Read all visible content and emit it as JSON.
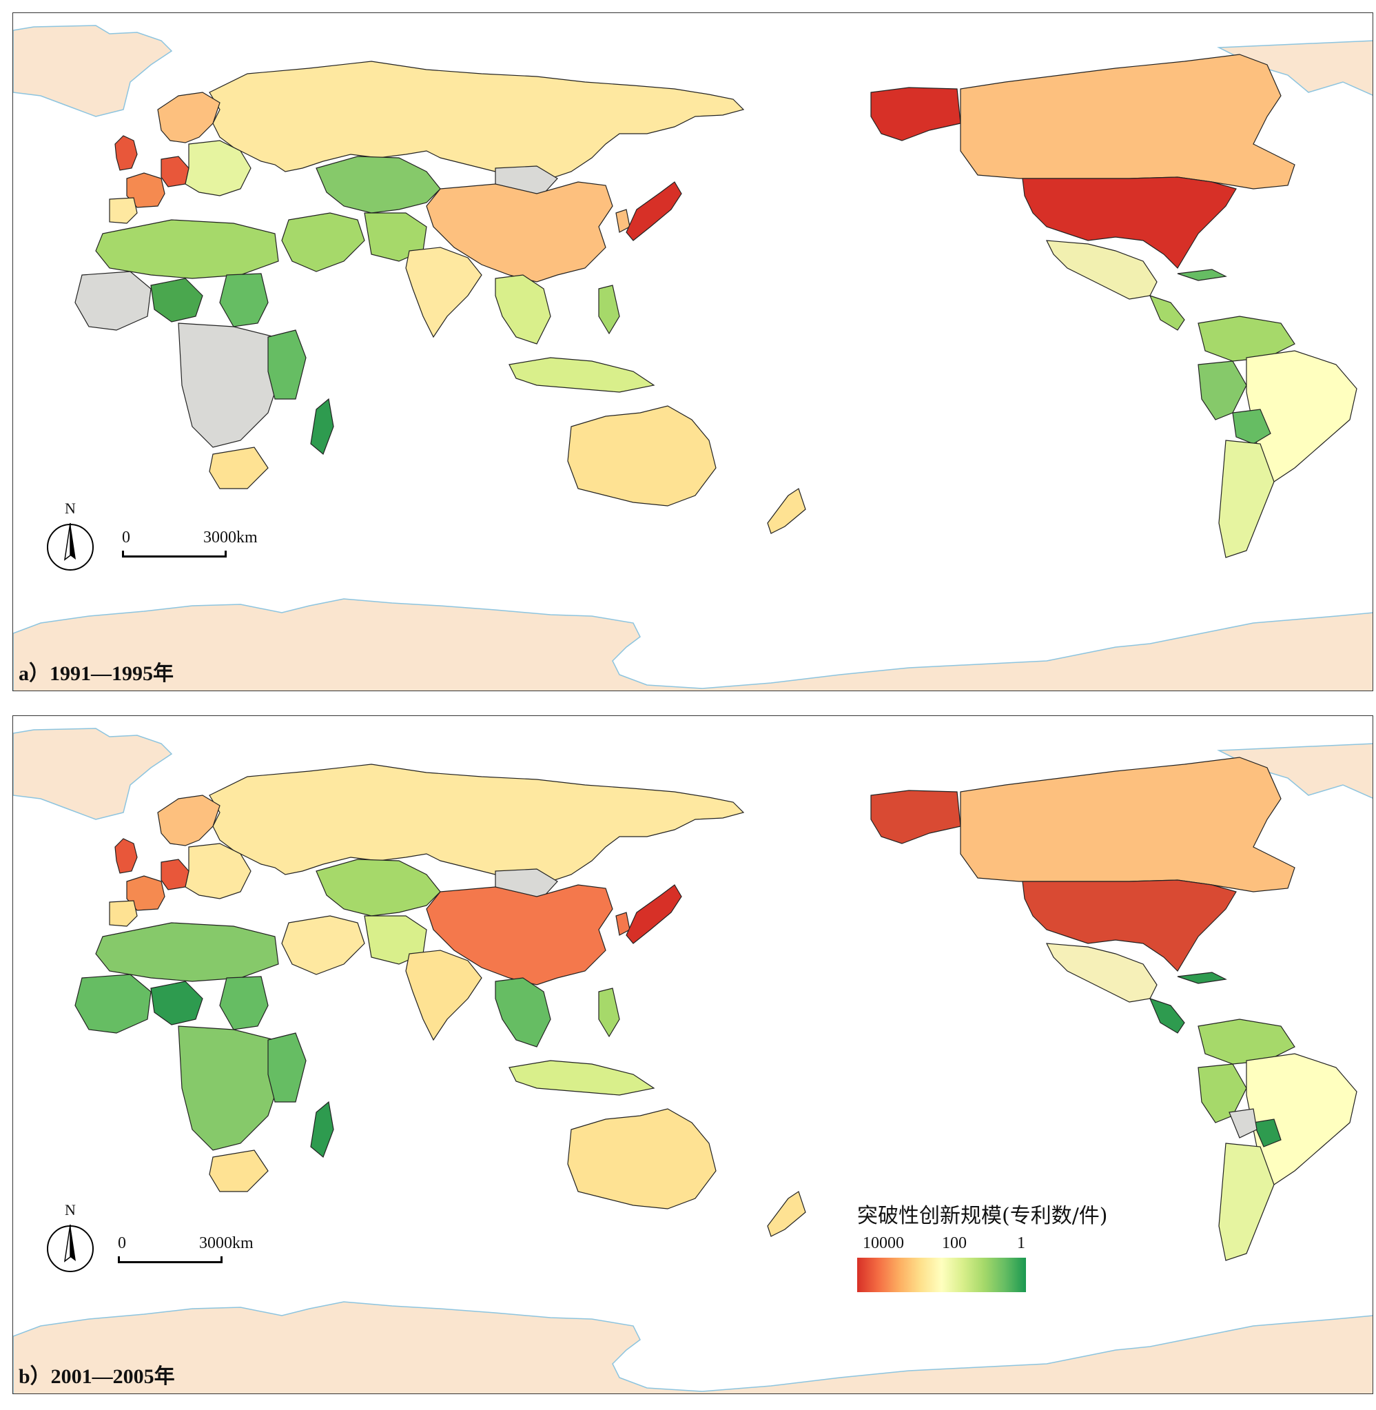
{
  "figure": {
    "panels": [
      {
        "id": "a",
        "label": "a）1991—1995年"
      },
      {
        "id": "b",
        "label": "b）2001—2005年"
      }
    ],
    "scale_bar": {
      "zero": "0",
      "distance": "3000km"
    },
    "north_arrow": {
      "letter": "N"
    },
    "legend": {
      "title": "突破性创新规模(专利数/件)",
      "ticks": [
        "10000",
        "100",
        "1"
      ],
      "colors": [
        "#d73027",
        "#f46d43",
        "#fdae61",
        "#fee08b",
        "#ffffbf",
        "#d9ef8b",
        "#a6d96a",
        "#66bd63",
        "#1a9850"
      ]
    },
    "no_data_color": "#d9d9d6",
    "ice_color": "#fae5cf",
    "regions_1991_1995": {
      "United States": "#d73027",
      "Alaska": "#d73027",
      "Japan": "#d73027",
      "United Kingdom": "#e8573a",
      "Germany": "#e8573a",
      "France": "#f58a50",
      "Canada": "#fdc07e",
      "China": "#fdc07e",
      "Australia": "#fee293",
      "Russia": "#fee8a0",
      "India": "#fee8a0",
      "Brazil": "#ffffbf",
      "Mexico": "#f2f0b0",
      "Argentina": "#e6f4a0",
      "South Africa": "#fee293",
      "Kazakhstan": "#86c96a",
      "Nigeria": "#4aa74e",
      "Sudan": "#66bd63",
      "Madagascar": "#2e9b4f",
      "Peru": "#86c96a",
      "Bolivia": "#66bd63"
    },
    "regions_2001_2005": {
      "United States": "#d94a33",
      "Alaska": "#d94a33",
      "Japan": "#d73027",
      "China": "#f4784c",
      "United Kingdom": "#e8573a",
      "Germany": "#e8573a",
      "France": "#f58a50",
      "Canada": "#fdc07e",
      "Australia": "#fee293",
      "Russia": "#fee8a0",
      "India": "#fee293",
      "Brazil": "#ffffbf",
      "Mexico": "#f6f0b8",
      "Argentina": "#e6f4a0",
      "South Africa": "#fee293",
      "Kazakhstan": "#a6d96a",
      "Nigeria": "#2e9b4f",
      "Madagascar": "#2e9b4f",
      "Paraguay": "#2e9b4f"
    }
  }
}
